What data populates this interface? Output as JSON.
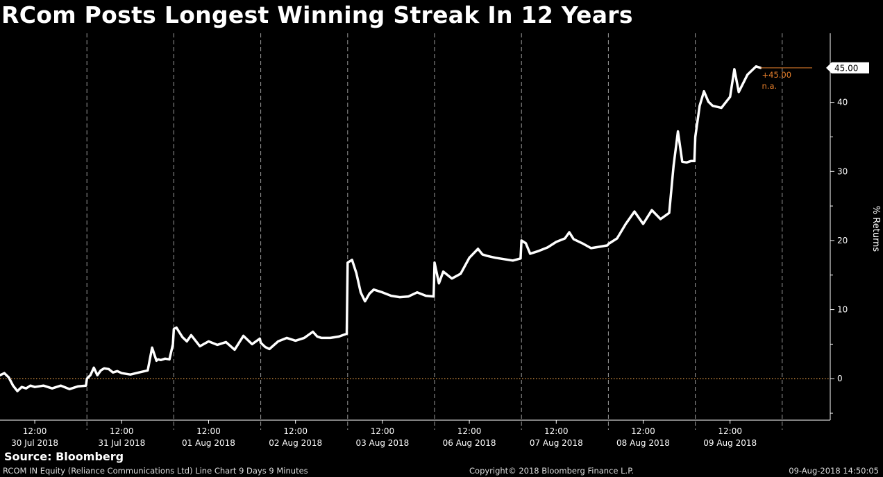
{
  "chart_data": {
    "type": "line",
    "title": "RCom Posts Longest Winning Streak In 12 Years",
    "ylabel": "% Returns",
    "ylim": [
      -6,
      50
    ],
    "yticks": [
      0,
      10,
      20,
      30,
      40
    ],
    "grid": "vertical dashed day separators",
    "baseline": 0,
    "days": [
      "30 Jul 2018",
      "31 Jul 2018",
      "01 Aug 2018",
      "02 Aug 2018",
      "03 Aug 2018",
      "06 Aug 2018",
      "07 Aug 2018",
      "08 Aug 2018",
      "09 Aug 2018"
    ],
    "time_label": "12:00",
    "last_value_label": "45.00",
    "annotation_value": "+45.00",
    "annotation_note": "n.a.",
    "series": [
      {
        "color": "#ffffff",
        "x": [
          0,
          0.05,
          0.1,
          0.15,
          0.2,
          0.25,
          0.3,
          0.35,
          0.4,
          0.5,
          0.6,
          0.7,
          0.8,
          0.9,
          0.99,
          1.0,
          1.04,
          1.08,
          1.12,
          1.16,
          1.2,
          1.25,
          1.3,
          1.35,
          1.4,
          1.5,
          1.6,
          1.7,
          1.75,
          1.8,
          1.82,
          1.85,
          1.9,
          1.95,
          1.99,
          2.0,
          2.03,
          2.06,
          2.1,
          2.15,
          2.2,
          2.3,
          2.4,
          2.5,
          2.6,
          2.7,
          2.8,
          2.9,
          2.99,
          3.0,
          3.05,
          3.1,
          3.2,
          3.3,
          3.4,
          3.5,
          3.6,
          3.65,
          3.7,
          3.8,
          3.9,
          3.99,
          4.0,
          4.05,
          4.1,
          4.15,
          4.2,
          4.25,
          4.3,
          4.35,
          4.4,
          4.5,
          4.6,
          4.7,
          4.8,
          4.9,
          4.99,
          5.0,
          5.05,
          5.1,
          5.2,
          5.3,
          5.4,
          5.5,
          5.55,
          5.6,
          5.7,
          5.8,
          5.9,
          5.99,
          6.0,
          6.05,
          6.1,
          6.2,
          6.3,
          6.4,
          6.5,
          6.55,
          6.6,
          6.7,
          6.8,
          6.9,
          6.99,
          7.0,
          7.1,
          7.2,
          7.3,
          7.4,
          7.5,
          7.6,
          7.7,
          7.75,
          7.8,
          7.85,
          7.9,
          7.95,
          7.99,
          8.0,
          8.05,
          8.1,
          8.15,
          8.2,
          8.3,
          8.4,
          8.45,
          8.5,
          8.6,
          8.7,
          8.75
        ],
        "y": [
          0.5,
          0.8,
          0.2,
          -1.0,
          -1.8,
          -1.2,
          -1.4,
          -1.0,
          -1.2,
          -1.0,
          -1.4,
          -1.0,
          -1.5,
          -1.1,
          -1.0,
          0.0,
          0.5,
          1.6,
          0.5,
          1.2,
          1.5,
          1.4,
          0.9,
          1.1,
          0.8,
          0.6,
          0.9,
          1.2,
          4.5,
          2.6,
          2.8,
          2.7,
          2.9,
          2.8,
          5.0,
          7.2,
          7.4,
          6.8,
          6.0,
          5.4,
          6.3,
          4.7,
          5.4,
          4.9,
          5.3,
          4.2,
          6.2,
          5.0,
          5.8,
          5.2,
          4.6,
          4.3,
          5.4,
          5.9,
          5.5,
          5.9,
          6.8,
          6.1,
          5.9,
          5.9,
          6.1,
          6.5,
          16.8,
          17.2,
          15.3,
          12.5,
          11.2,
          12.3,
          12.9,
          12.7,
          12.5,
          12.0,
          11.8,
          11.9,
          12.5,
          12.0,
          11.9,
          16.8,
          13.8,
          15.5,
          14.5,
          15.2,
          17.5,
          18.8,
          18.0,
          17.8,
          17.5,
          17.3,
          17.1,
          17.4,
          20.0,
          19.6,
          18.1,
          18.5,
          19.0,
          19.8,
          20.3,
          21.2,
          20.2,
          19.6,
          18.9,
          19.1,
          19.3,
          19.5,
          20.3,
          22.4,
          24.2,
          22.4,
          24.4,
          23.1,
          24.0,
          30.8,
          35.8,
          31.4,
          31.3,
          31.5,
          31.5,
          35.0,
          39.5,
          41.6,
          40.1,
          39.5,
          39.2,
          40.8,
          44.8,
          41.5,
          44.0,
          45.2,
          45.0
        ]
      }
    ]
  },
  "source": "Source: Bloomberg",
  "footer": {
    "left": "RCOM IN Equity (Reliance Communications Ltd) Line Chart 9 Days 9 Minutes",
    "center": "Copyright© 2018 Bloomberg Finance L.P.",
    "right": "09-Aug-2018 14:50:05"
  }
}
